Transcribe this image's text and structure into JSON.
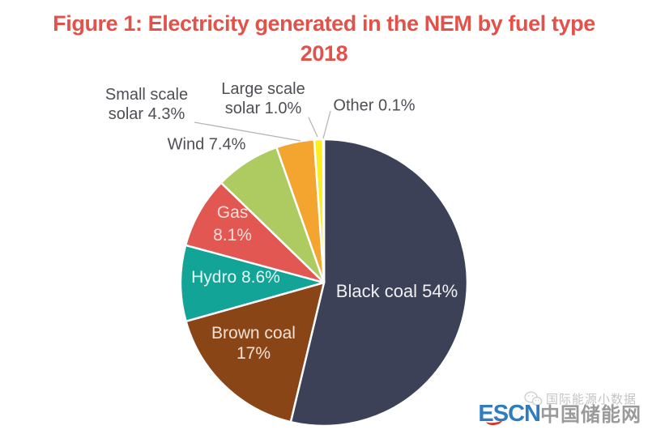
{
  "figure": {
    "title_line1": "Figure 1: Electricity generated in the NEM by fuel type",
    "title_line2": "2018",
    "title_color": "#e2524a"
  },
  "chart_data": {
    "type": "pie",
    "title": "Figure 1: Electricity generated in the NEM by fuel type 2018",
    "unit": "%",
    "start_angle_deg": 0,
    "direction": "clockwise",
    "legend_position": "none",
    "series": [
      {
        "name": "Black coal",
        "value": 54,
        "display_label": "Black coal 54%",
        "color": "#3c4157",
        "label_color": "#eef0f4",
        "label_placement": "inside"
      },
      {
        "name": "Brown coal",
        "value": 17,
        "display_label": "Brown coal 17%",
        "color": "#8a4517",
        "label_color": "#f5e1d3",
        "label_placement": "inside"
      },
      {
        "name": "Hydro",
        "value": 8.6,
        "display_label": "Hydro 8.6%",
        "color": "#12a496",
        "label_color": "#e6f8f3",
        "label_placement": "inside"
      },
      {
        "name": "Gas",
        "value": 8.1,
        "display_label": "Gas 8.1%",
        "color": "#e25751",
        "label_color": "#fbdcd6",
        "label_placement": "inside"
      },
      {
        "name": "Wind",
        "value": 7.4,
        "display_label": "Wind 7.4%",
        "color": "#aecb62",
        "label_color": "#4e4e55",
        "label_placement": "outside"
      },
      {
        "name": "Small scale solar",
        "value": 4.3,
        "display_label": "Small scale solar 4.3%",
        "color": "#f3a52f",
        "label_color": "#4e4e55",
        "label_placement": "outside"
      },
      {
        "name": "Large scale solar",
        "value": 1.0,
        "display_label": "Large scale solar 1.0%",
        "color": "#fcee21",
        "label_color": "#4e4e55",
        "label_placement": "outside"
      },
      {
        "name": "Other",
        "value": 0.1,
        "display_label": "Other 0.1%",
        "color": "#e3e3e3",
        "label_color": "#4e4e55",
        "label_placement": "outside"
      }
    ]
  },
  "labels": {
    "black_coal": "Black coal 54%",
    "brown_coal_line1": "Brown coal",
    "brown_coal_line2": "17%",
    "hydro": "Hydro 8.6%",
    "gas_line1": "Gas",
    "gas_line2": "8.1%",
    "wind": "Wind 7.4%",
    "small_solar_line1": "Small scale",
    "small_solar_line2": "solar 4.3%",
    "large_solar_line1": "Large scale",
    "large_solar_line2": "solar 1.0%",
    "other": "Other 0.1%"
  },
  "watermark": {
    "wechat_account": "国际能源小数据",
    "brand_en": "ESCN",
    "brand_cn": "中国储能网",
    "brand_blue": "#2f7cc0",
    "accent_red": "#d5352f",
    "gray": "#b9b9b9"
  }
}
